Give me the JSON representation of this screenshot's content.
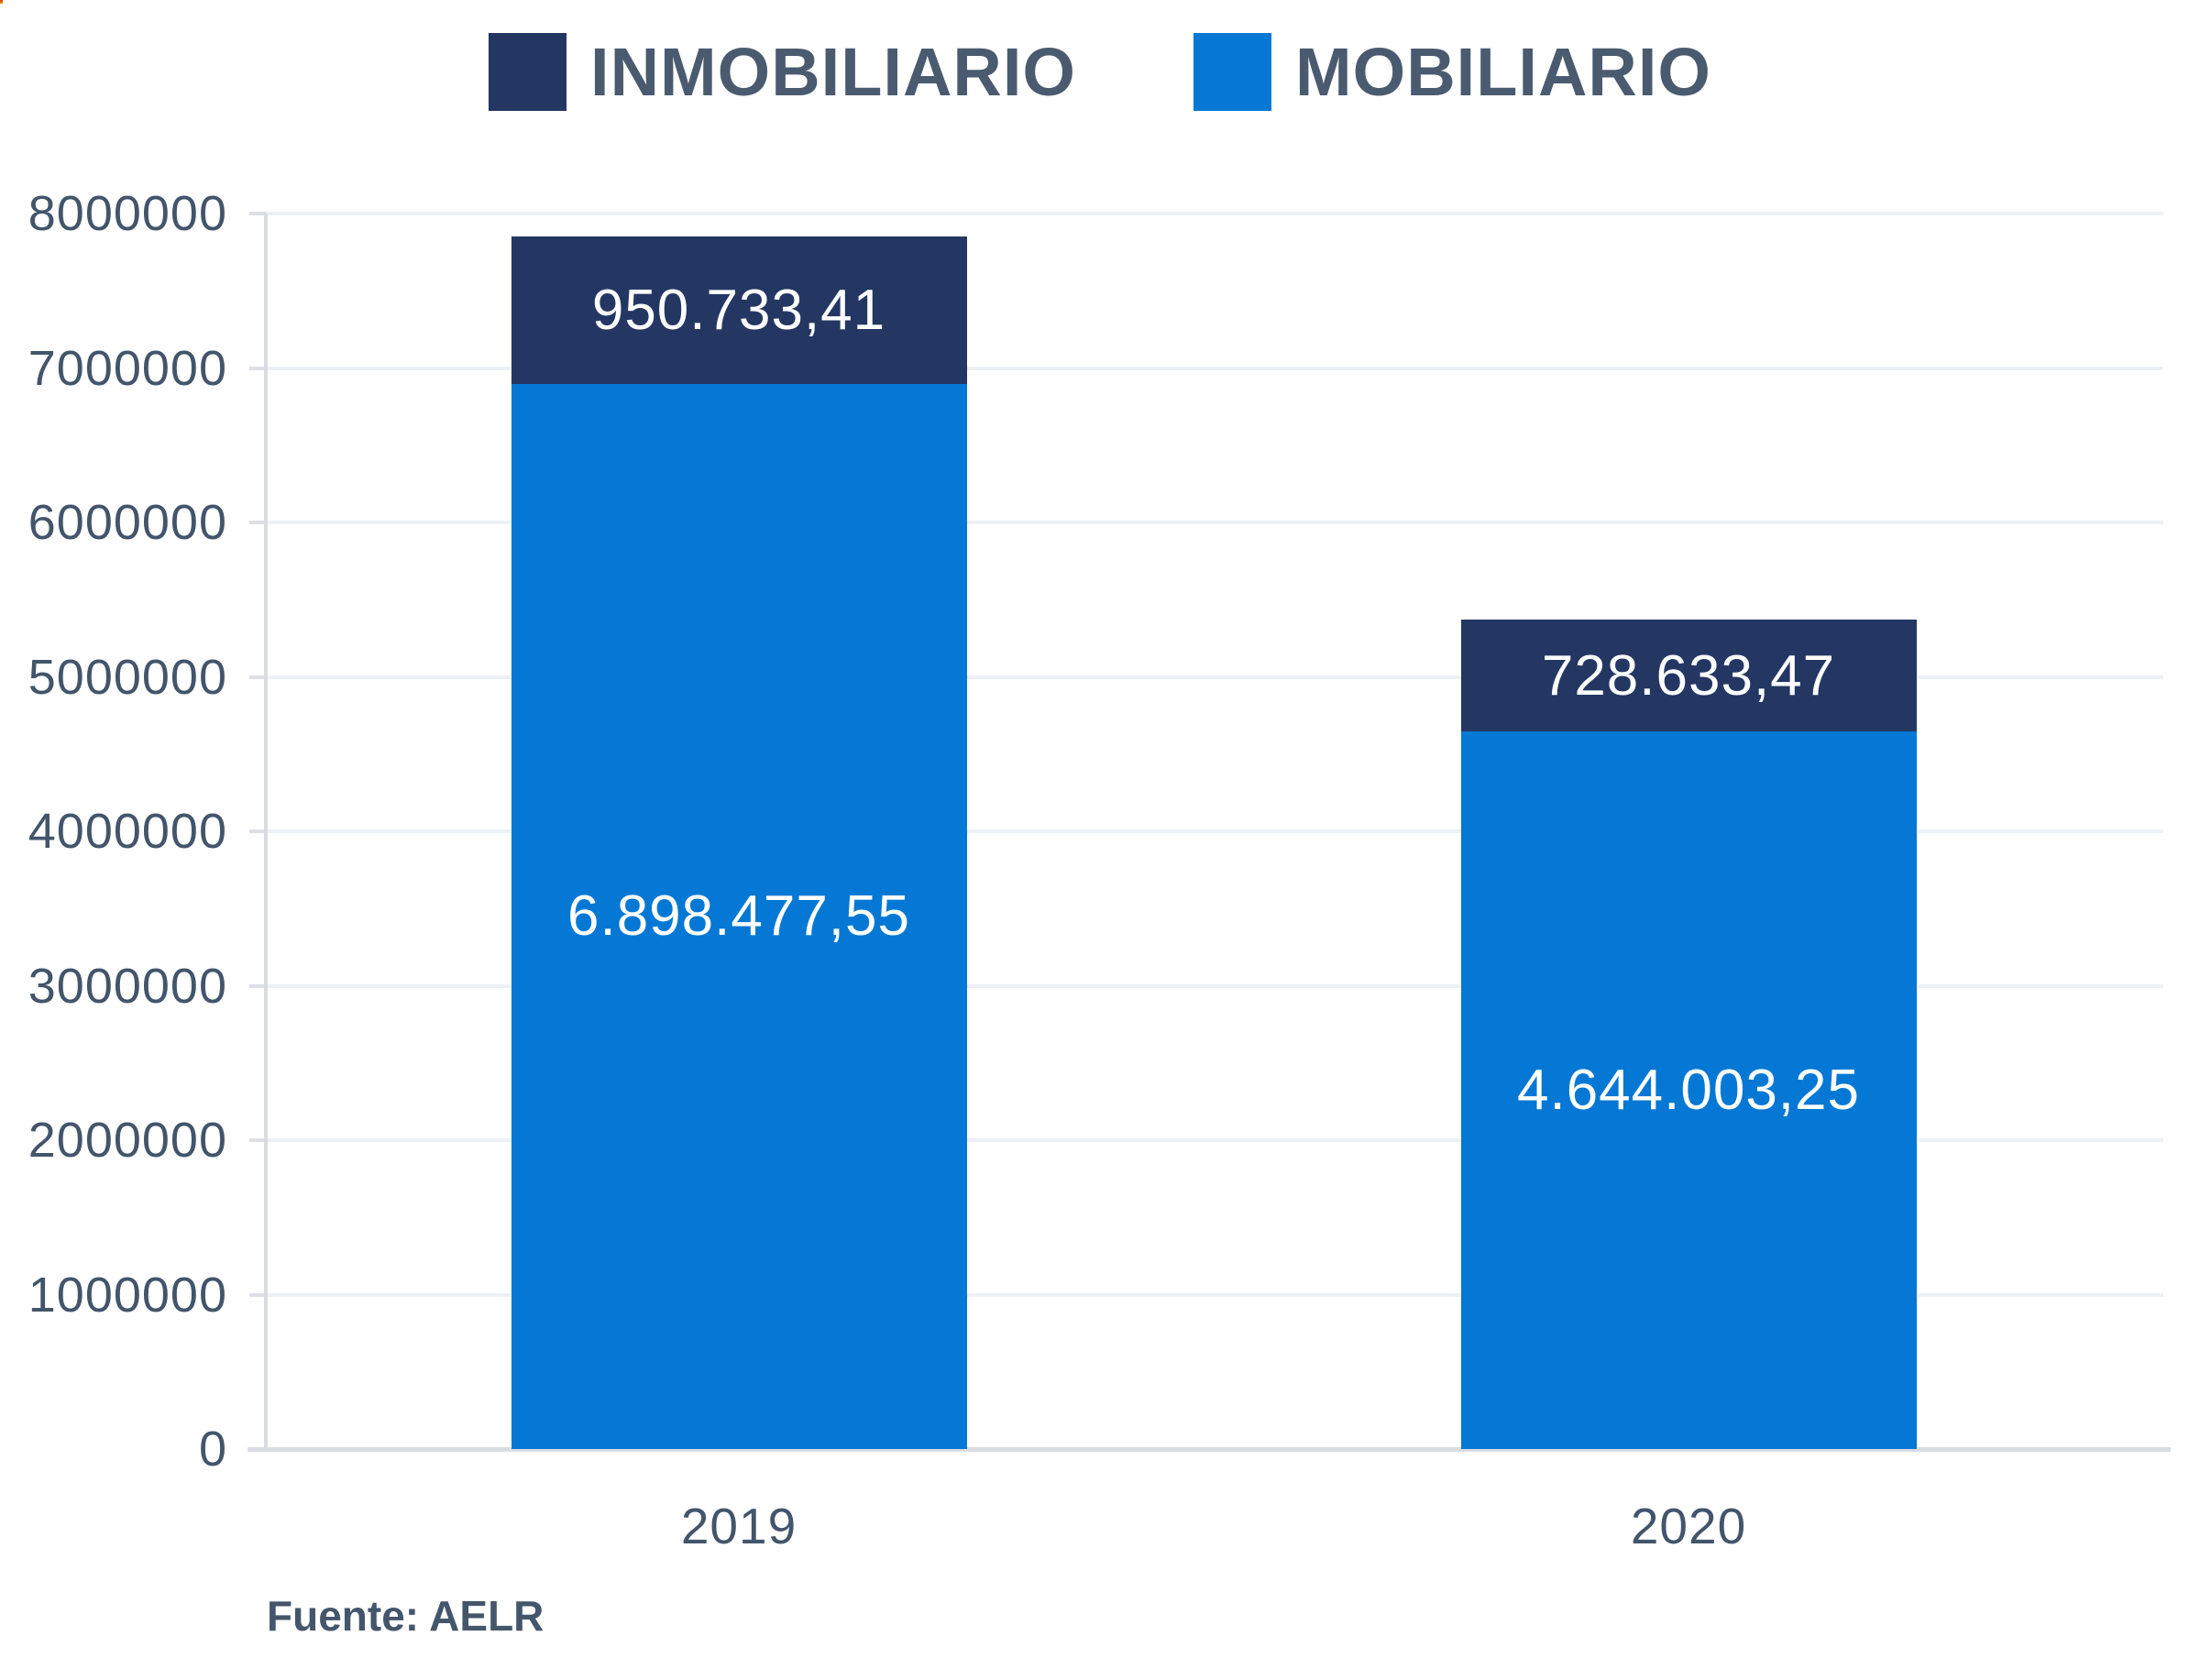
{
  "chart_data": {
    "type": "bar",
    "stacked": true,
    "title": "",
    "categories": [
      "2019",
      "2020"
    ],
    "series": [
      {
        "name": "INMOBILIARIO",
        "color": "#243763",
        "values": [
          950733.41,
          728633.47
        ],
        "labels": [
          "950.733,41",
          "728.633,47"
        ]
      },
      {
        "name": "MOBILIARIO",
        "color": "#0478d4",
        "values": [
          6898477.55,
          4644003.25
        ],
        "labels": [
          "6.898.477,55",
          "4.644.003,25"
        ]
      }
    ],
    "xlabel": "",
    "ylabel": "",
    "ylim": [
      0,
      8000000
    ],
    "ytick_labels": [
      "0",
      "1000000",
      "2000000",
      "3000000",
      "4000000",
      "5000000",
      "6000000",
      "7000000",
      "8000000"
    ],
    "legend_position": "top",
    "grid": "horizontal",
    "value_label_color": "#ffffff",
    "axis_text_color": "#42556b",
    "source": "Fuente: AELR"
  }
}
